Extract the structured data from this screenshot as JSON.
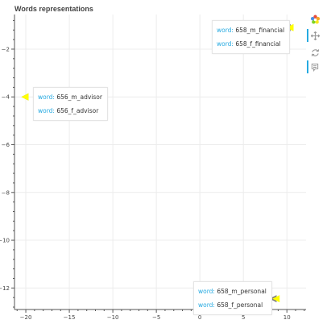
{
  "title": "Words representations",
  "chart_data": {
    "type": "scatter",
    "xlim": [
      -21.3,
      12.2
    ],
    "ylim": [
      -12.9,
      -0.55
    ],
    "x_ticks": [
      -20,
      -15,
      -10,
      -5,
      0,
      5,
      10
    ],
    "y_ticks": [
      -2,
      -4,
      -6,
      -8,
      -10,
      -12
    ],
    "grid": true,
    "marker_colors": {
      "m": "#808080",
      "f": "#ffff00"
    },
    "points": [
      {
        "word": "656_m_advisor",
        "group": "m",
        "x": -20.1,
        "y": -4.0
      },
      {
        "word": "656_f_advisor",
        "group": "f",
        "x": -20.1,
        "y": -4.0
      },
      {
        "word": "658_m_financial",
        "group": "m",
        "x": 10.0,
        "y": -1.1
      },
      {
        "word": "658_f_financial",
        "group": "f",
        "x": 10.35,
        "y": -1.1
      },
      {
        "word": "658_m_personal",
        "group": "m",
        "x": 8.4,
        "y": -12.45
      },
      {
        "word": "658_f_personal",
        "group": "f",
        "x": 8.75,
        "y": -12.45
      }
    ]
  },
  "tooltips": [
    {
      "rows": [
        {
          "key": "word:",
          "value": "656_m_advisor"
        },
        {
          "key": "word:",
          "value": "656_f_advisor"
        }
      ]
    },
    {
      "rows": [
        {
          "key": "word:",
          "value": "658_m_financial"
        },
        {
          "key": "word:",
          "value": "658_f_financial"
        }
      ]
    },
    {
      "rows": [
        {
          "key": "word:",
          "value": "658_m_personal"
        },
        {
          "key": "word:",
          "value": "658_f_personal"
        }
      ]
    }
  ],
  "toolbar": {
    "tools": [
      {
        "name": "bokeh-logo-icon",
        "active": false
      },
      {
        "name": "pan-icon",
        "active": true
      },
      {
        "name": "reset-icon",
        "active": false
      },
      {
        "name": "hover-icon",
        "active": true
      }
    ]
  }
}
